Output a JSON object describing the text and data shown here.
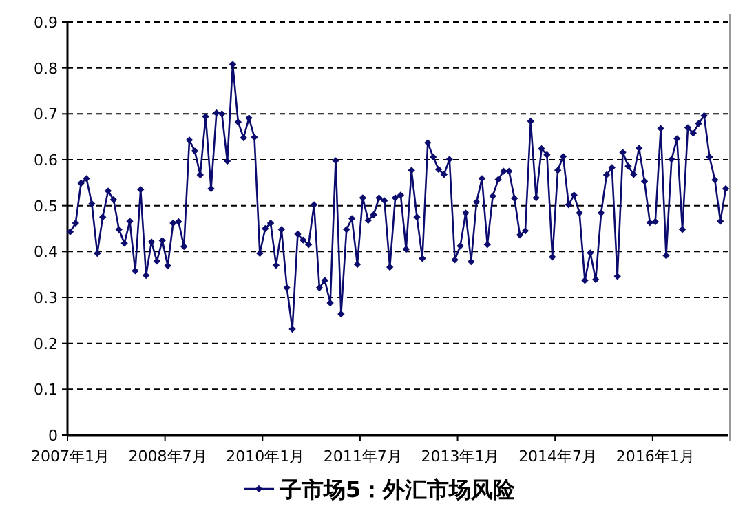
{
  "chart_data": {
    "type": "line",
    "categories": [
      "2007年1月",
      null,
      null,
      null,
      null,
      null,
      null,
      null,
      null,
      null,
      null,
      null,
      null,
      null,
      null,
      null,
      null,
      null,
      "2008年7月",
      null,
      null,
      null,
      null,
      null,
      null,
      null,
      null,
      null,
      null,
      null,
      null,
      null,
      null,
      null,
      null,
      null,
      "2010年1月",
      null,
      null,
      null,
      null,
      null,
      null,
      null,
      null,
      null,
      null,
      null,
      null,
      null,
      null,
      null,
      null,
      null,
      "2011年7月",
      null,
      null,
      null,
      null,
      null,
      null,
      null,
      null,
      null,
      null,
      null,
      null,
      null,
      null,
      null,
      null,
      null,
      "2013年1月",
      null,
      null,
      null,
      null,
      null,
      null,
      null,
      null,
      null,
      null,
      null,
      null,
      null,
      null,
      null,
      null,
      null,
      "2014年7月",
      null,
      null,
      null,
      null,
      null,
      null,
      null,
      null,
      null,
      null,
      null,
      null,
      null,
      null,
      null,
      null,
      null,
      "2016年1月",
      null,
      null,
      null,
      null,
      null,
      null,
      null,
      null,
      null,
      null,
      null,
      null,
      null
    ],
    "series": [
      {
        "name": "子市场5：外汇市场风险",
        "color": "#0c0c6e",
        "values": [
          0.443,
          0.462,
          0.549,
          0.559,
          0.504,
          0.396,
          0.475,
          0.532,
          0.513,
          0.448,
          0.418,
          0.466,
          0.358,
          0.535,
          0.348,
          0.421,
          0.379,
          0.424,
          0.369,
          0.462,
          0.465,
          0.411,
          0.643,
          0.619,
          0.567,
          0.694,
          0.537,
          0.702,
          0.7,
          0.597,
          0.808,
          0.682,
          0.648,
          0.691,
          0.649,
          0.396,
          0.45,
          0.462,
          0.37,
          0.448,
          0.321,
          0.231,
          0.438,
          0.425,
          0.415,
          0.502,
          0.321,
          0.337,
          0.288,
          0.598,
          0.264,
          0.448,
          0.472,
          0.372,
          0.517,
          0.468,
          0.48,
          0.517,
          0.511,
          0.366,
          0.517,
          0.523,
          0.405,
          0.577,
          0.475,
          0.385,
          0.637,
          0.606,
          0.579,
          0.568,
          0.601,
          0.382,
          0.412,
          0.484,
          0.378,
          0.508,
          0.559,
          0.415,
          0.521,
          0.557,
          0.575,
          0.575,
          0.516,
          0.436,
          0.445,
          0.684,
          0.517,
          0.624,
          0.611,
          0.388,
          0.577,
          0.607,
          0.502,
          0.523,
          0.484,
          0.337,
          0.397,
          0.339,
          0.484,
          0.567,
          0.583,
          0.346,
          0.616,
          0.586,
          0.568,
          0.625,
          0.553,
          0.463,
          0.465,
          0.668,
          0.391,
          0.601,
          0.646,
          0.448,
          0.67,
          0.658,
          0.679,
          0.696,
          0.606,
          0.556,
          0.466,
          0.537
        ]
      }
    ],
    "ylim": [
      0,
      0.9
    ],
    "yticks": [
      0,
      0.1,
      0.2,
      0.3,
      0.4,
      0.5,
      0.6,
      0.7,
      0.8,
      0.9
    ],
    "grid": "y",
    "legend": "bottom",
    "marker": "diamond",
    "line_style": "solid"
  }
}
